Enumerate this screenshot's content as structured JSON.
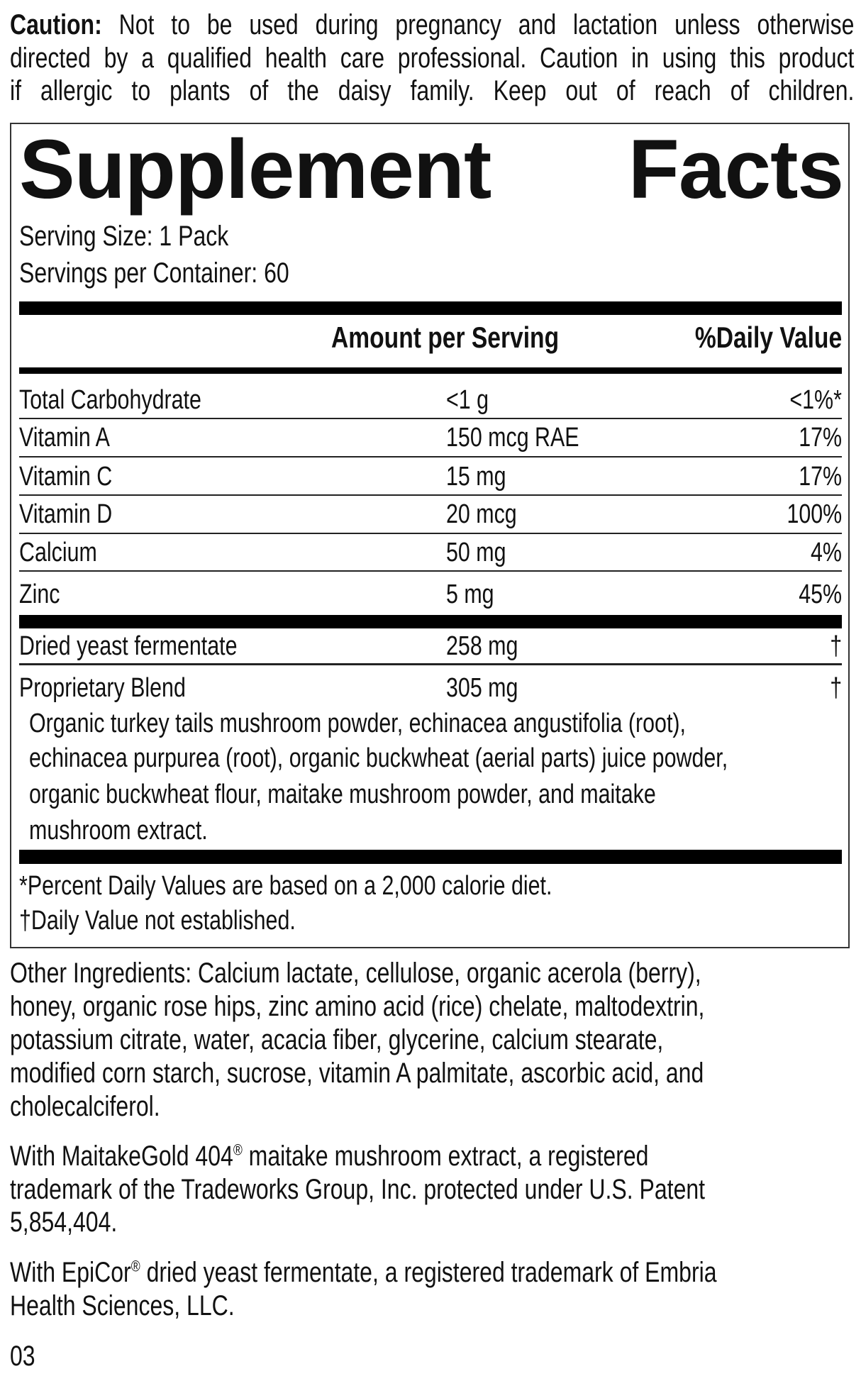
{
  "caution": {
    "label": "Caution:",
    "lines": [
      " Not to be used during pregnancy and lactation unless otherwise",
      "directed by a qualified health care professional. Caution in using this product",
      "if allergic to plants of the daisy family. Keep out of reach of children."
    ]
  },
  "facts": {
    "title_left": "Supplement",
    "title_right": "Facts",
    "serving_size": "Serving Size: 1 Pack",
    "servings_per_container": "Servings per Container: 60",
    "header_amount": "Amount per Serving",
    "header_dv": "%Daily Value",
    "rows": [
      {
        "name": "Total Carbohydrate",
        "amount": "<1 g",
        "dv": "<1%*"
      },
      {
        "name": "Vitamin A",
        "amount": "150 mcg RAE",
        "dv": "17%"
      },
      {
        "name": "Vitamin C",
        "amount": "15 mg",
        "dv": "17%"
      },
      {
        "name": "Vitamin D",
        "amount": "20 mcg",
        "dv": "100%"
      },
      {
        "name": "Calcium",
        "amount": "50 mg",
        "dv": "4%"
      },
      {
        "name": "Zinc",
        "amount": "5 mg",
        "dv": "45%"
      }
    ],
    "other_rows": [
      {
        "name": "Dried yeast fermentate",
        "amount": "258 mg",
        "dv": "†"
      },
      {
        "name": "Proprietary Blend",
        "amount": "305 mg",
        "dv": "†"
      }
    ],
    "blend_lines": [
      "Organic turkey tails mushroom powder, echinacea angustifolia (root),",
      "echinacea purpurea (root), organic buckwheat (aerial parts) juice powder,",
      "organic buckwheat flour, maitake mushroom powder, and maitake",
      "mushroom extract."
    ],
    "footnotes": [
      "*Percent Daily Values are based on a 2,000 calorie diet.",
      "†Daily Value not established."
    ]
  },
  "other_ingredients": [
    "Other Ingredients: Calcium lactate, cellulose, organic acerola (berry),",
    "honey, organic rose hips, zinc amino acid (rice) chelate, maltodextrin,",
    "potassium citrate, water, acacia fiber, glycerine, calcium stearate,",
    "modified corn starch, sucrose, vitamin A palmitate, ascorbic acid, and",
    "cholecalciferol."
  ],
  "maitake_note": {
    "pre": "With MaitakeGold 404",
    "reg": "®",
    "line1_post": " maitake mushroom extract, a registered",
    "line2": "trademark of the Tradeworks Group, Inc. protected under U.S. Patent",
    "line3": "5,854,404."
  },
  "epicor_note": {
    "pre": "With EpiCor",
    "reg": "®",
    "line1_post": " dried yeast fermentate, a registered trademark of Embria",
    "line2": "Health Sciences, LLC."
  },
  "code": "03"
}
